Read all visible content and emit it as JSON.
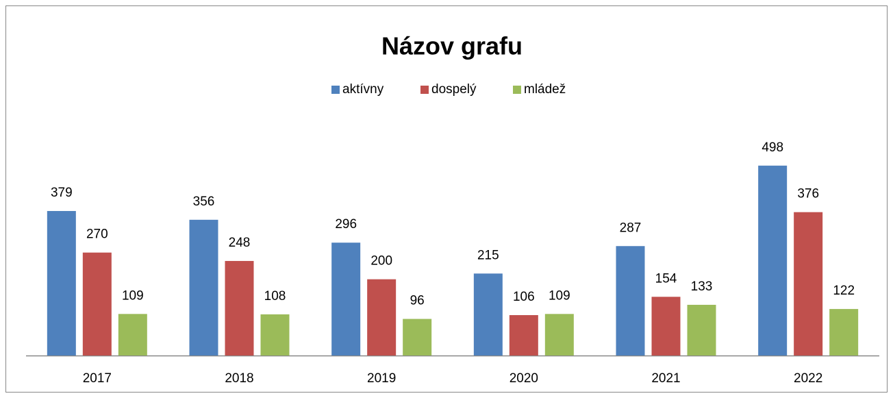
{
  "chart_data": {
    "type": "bar",
    "title": "Názov grafu",
    "categories": [
      "2017",
      "2018",
      "2019",
      "2020",
      "2021",
      "2022"
    ],
    "series": [
      {
        "name": "aktívny",
        "color": "#4f81bd",
        "values": [
          379,
          356,
          296,
          215,
          287,
          498
        ]
      },
      {
        "name": "dospelý",
        "color": "#c0504d",
        "values": [
          270,
          248,
          200,
          106,
          154,
          376
        ]
      },
      {
        "name": "mládež",
        "color": "#9bbb59",
        "values": [
          109,
          108,
          96,
          109,
          133,
          122
        ]
      }
    ],
    "ylim": [
      0,
      600
    ],
    "legend": "top"
  }
}
